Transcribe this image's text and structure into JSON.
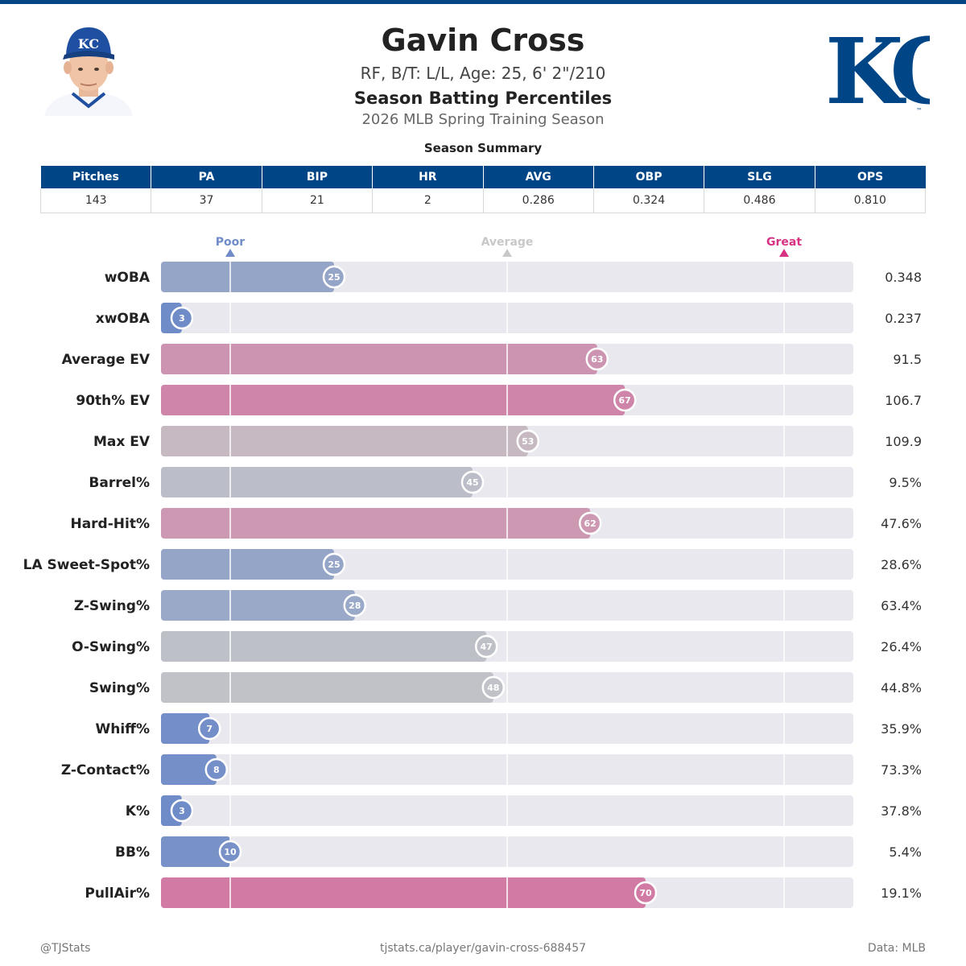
{
  "player": {
    "name": "Gavin Cross",
    "bio": "RF, B/T: L/L, Age: 25, 6' 2\"/210",
    "heading": "Season Batting Percentiles",
    "season": "2026 MLB Spring Training Season"
  },
  "team": {
    "logo_icon": "kc-royals-logo",
    "brand_color": "#004687"
  },
  "summary": {
    "title": "Season Summary",
    "headers": [
      "Pitches",
      "PA",
      "BIP",
      "HR",
      "AVG",
      "OBP",
      "SLG",
      "OPS"
    ],
    "values": [
      "143",
      "37",
      "21",
      "2",
      "0.286",
      "0.324",
      "0.486",
      "0.810"
    ]
  },
  "chart_data": {
    "type": "bar",
    "orientation": "horizontal",
    "xlim": [
      0,
      100
    ],
    "markers": [
      {
        "label": "Poor",
        "value": 10,
        "color": "#6f8cc8"
      },
      {
        "label": "Average",
        "value": 50,
        "color": "#c8c8c8"
      },
      {
        "label": "Great",
        "value": 90,
        "color": "#d63384"
      }
    ],
    "categories": [
      "wOBA",
      "xwOBA",
      "Average EV",
      "90th% EV",
      "Max EV",
      "Barrel%",
      "Hard-Hit%",
      "LA Sweet-Spot%",
      "Z-Swing%",
      "O-Swing%",
      "Swing%",
      "Whiff%",
      "Z-Contact%",
      "K%",
      "BB%",
      "PullAir%"
    ],
    "percentiles": [
      25,
      3,
      63,
      67,
      53,
      45,
      62,
      25,
      28,
      47,
      48,
      7,
      8,
      3,
      10,
      70
    ],
    "values": [
      "0.348",
      "0.237",
      "91.5",
      "106.7",
      "109.9",
      "9.5%",
      "47.6%",
      "28.6%",
      "63.4%",
      "26.4%",
      "44.8%",
      "35.9%",
      "73.3%",
      "37.8%",
      "5.4%",
      "19.1%"
    ],
    "track_color": "#e8e8ee",
    "low_color": "#6f8cc8",
    "mid_color": "#c4c4c8",
    "high_color": "#d4689a"
  },
  "footer": {
    "left": "@TJStats",
    "center": "tjstats.ca/player/gavin-cross-688457",
    "right": "Data: MLB"
  }
}
